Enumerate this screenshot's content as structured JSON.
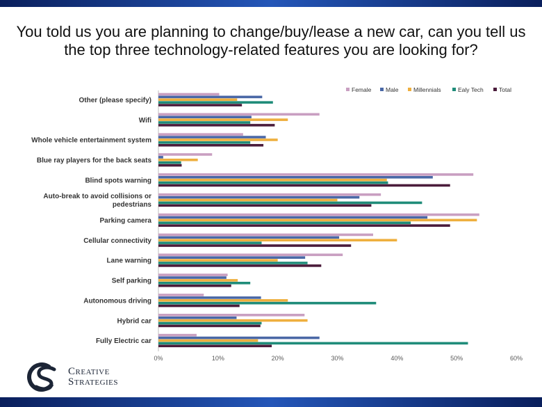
{
  "slide": {
    "title": "You told us you are planning to change/buy/lease a new car, can you tell us the top three technology-related features you are looking for?"
  },
  "brand": {
    "line1_initial": "C",
    "line1_rest": "REATIVE",
    "line2_initial": "S",
    "line2_rest": "TRATEGIES"
  },
  "chart_data": {
    "type": "bar",
    "orientation": "horizontal",
    "title": "",
    "xlabel": "",
    "ylabel": "",
    "xlim": [
      0,
      60
    ],
    "ticks": [
      0,
      10,
      20,
      30,
      40,
      50,
      60
    ],
    "tick_format": "percent",
    "legend_position": "top-right",
    "categories": [
      "Other (please specify)",
      "Wifi",
      "Whole vehicle entertainment system",
      "Blue ray players for the back seats",
      "Blind spots warning",
      "Auto-break to avoid collisions or pedestrians",
      "Parking camera",
      "Cellular connectivity",
      "Lane warning",
      "Self parking",
      "Autonomous driving",
      "Hybrid car",
      "Fully Electric car"
    ],
    "series": [
      {
        "name": "Female",
        "color": "#c99fc1",
        "values": [
          10.2,
          27.0,
          14.2,
          9.0,
          52.8,
          37.3,
          53.8,
          36.0,
          30.9,
          11.6,
          7.6,
          24.5,
          6.4
        ]
      },
      {
        "name": "Male",
        "color": "#4a68a6",
        "values": [
          17.4,
          15.6,
          18.0,
          0.8,
          46.0,
          33.7,
          45.1,
          30.3,
          24.6,
          11.4,
          17.2,
          13.1,
          27.0
        ]
      },
      {
        "name": "Millennials",
        "color": "#eeaf3e",
        "values": [
          13.2,
          21.7,
          20.0,
          6.6,
          38.3,
          30.0,
          53.4,
          40.0,
          20.0,
          13.3,
          21.7,
          25.0,
          16.7
        ]
      },
      {
        "name": "Ealy Tech",
        "color": "#1f8c79",
        "values": [
          19.2,
          15.4,
          15.4,
          3.8,
          38.5,
          44.2,
          42.3,
          17.3,
          25.0,
          15.4,
          36.5,
          17.3,
          51.9
        ]
      },
      {
        "name": "Total",
        "color": "#4b1c3b",
        "values": [
          14.0,
          19.5,
          17.6,
          3.9,
          48.9,
          35.7,
          48.9,
          32.3,
          27.3,
          12.2,
          13.6,
          17.1,
          19.0
        ]
      }
    ]
  }
}
